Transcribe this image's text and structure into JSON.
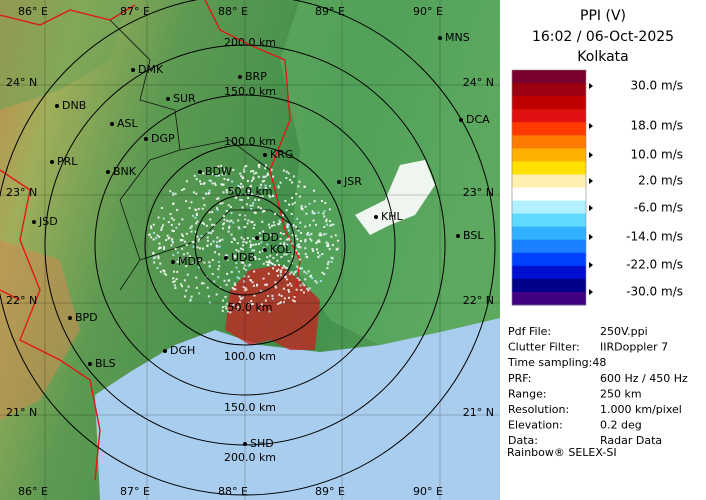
{
  "map": {
    "longitude_labels": [
      "86° E",
      "87° E",
      "88° E",
      "89° E",
      "90° E"
    ],
    "latitude_labels": [
      "24° N",
      "23° N",
      "22° N",
      "21° N"
    ],
    "range_labels_north": [
      "200.0 km",
      "150.0 km",
      "100.0 km",
      "50.0 km"
    ],
    "range_labels_south": [
      "50.0 km",
      "100.0 km",
      "150.0 km",
      "200.0 km"
    ],
    "stations": [
      "MNS",
      "DMK",
      "BRP",
      "DNB",
      "SUR",
      "ASL",
      "DGP",
      "DCA",
      "PRL",
      "BNK",
      "KRG",
      "BDW",
      "JSR",
      "KHL",
      "JSD",
      "DD",
      "KOL",
      "UDB",
      "MDP",
      "BSL",
      "BPD",
      "BLS",
      "DGH",
      "SHD"
    ]
  },
  "panel": {
    "title": "PPI (V)",
    "datetime": "16:02 / 06-Oct-2025",
    "site": "Kolkata",
    "scale": {
      "labels": [
        "30.0 m/s",
        "18.0 m/s",
        "10.0 m/s",
        "2.0 m/s",
        "-6.0 m/s",
        "-14.0 m/s",
        "-22.0 m/s",
        "-30.0 m/s"
      ],
      "colors": [
        "#7a0030",
        "#9a0010",
        "#c00000",
        "#e01010",
        "#ff3a00",
        "#ff7a00",
        "#ffb000",
        "#ffe000",
        "#fff0b0",
        "#ffffff",
        "#b0f0ff",
        "#60d8ff",
        "#30b0ff",
        "#1a80ff",
        "#0040ff",
        "#0010d0",
        "#00008a",
        "#400080"
      ]
    },
    "info": [
      [
        "Pdf File:",
        "250V.ppi"
      ],
      [
        "Clutter Filter:",
        "IIRDoppler 7"
      ],
      [
        "Time sampling:48"
      ],
      [
        "PRF:",
        "600 Hz / 450 Hz"
      ],
      [
        "Range:",
        "250 km"
      ],
      [
        "Resolution:",
        "1.000 km/pixel"
      ],
      [
        "Elevation:",
        "0.2 deg"
      ],
      [
        "Data:",
        "Radar Data"
      ]
    ],
    "footer": "Rainbow® SELEX-SI"
  }
}
